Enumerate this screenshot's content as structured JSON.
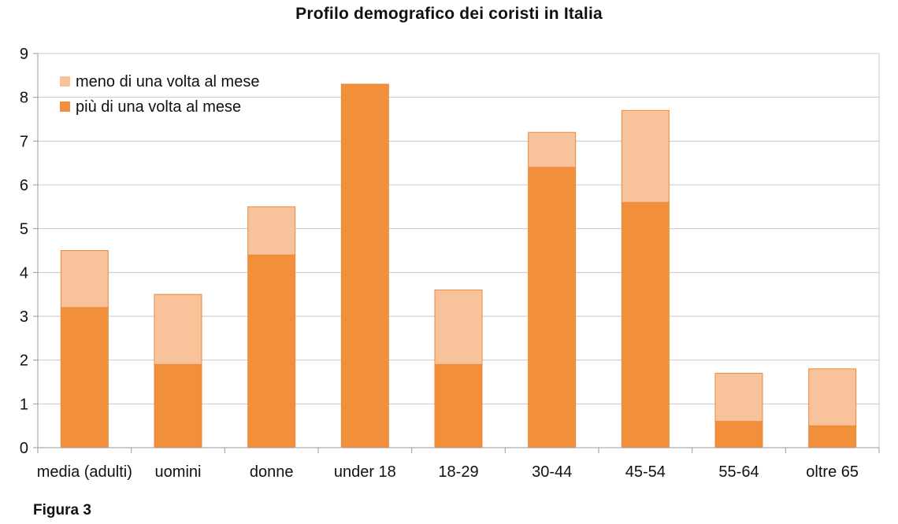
{
  "colors": {
    "dark_series": "#f28f3a",
    "light_series": "#f8c29a",
    "grid": "#c8c8c8",
    "axis": "#9a9a9a"
  },
  "caption": "Figura 3",
  "chart_data": {
    "type": "bar",
    "stacked": true,
    "title": "Profilo demografico dei coristi in Italia",
    "xlabel": "",
    "ylabel": "",
    "ylim": [
      0,
      9
    ],
    "yticks": [
      0,
      1,
      2,
      3,
      4,
      5,
      6,
      7,
      8,
      9
    ],
    "grid": true,
    "legend_position": "top-left",
    "categories": [
      "media (adulti)",
      "uomini",
      "donne",
      "under 18",
      "18-29",
      "30-44",
      "45-54",
      "55-64",
      "oltre 65"
    ],
    "series": [
      {
        "name": "più di una volta al mese",
        "color": "#f28f3a",
        "values": [
          3.2,
          1.9,
          4.4,
          8.3,
          1.9,
          6.4,
          5.6,
          0.6,
          0.5
        ]
      },
      {
        "name": "meno di una volta al mese",
        "color": "#f8c29a",
        "values": [
          1.3,
          1.6,
          1.1,
          0,
          1.7,
          0.8,
          2.1,
          1.1,
          1.3
        ]
      }
    ],
    "legend_order": [
      "meno di una volta al mese",
      "più di una volta al mese"
    ]
  }
}
